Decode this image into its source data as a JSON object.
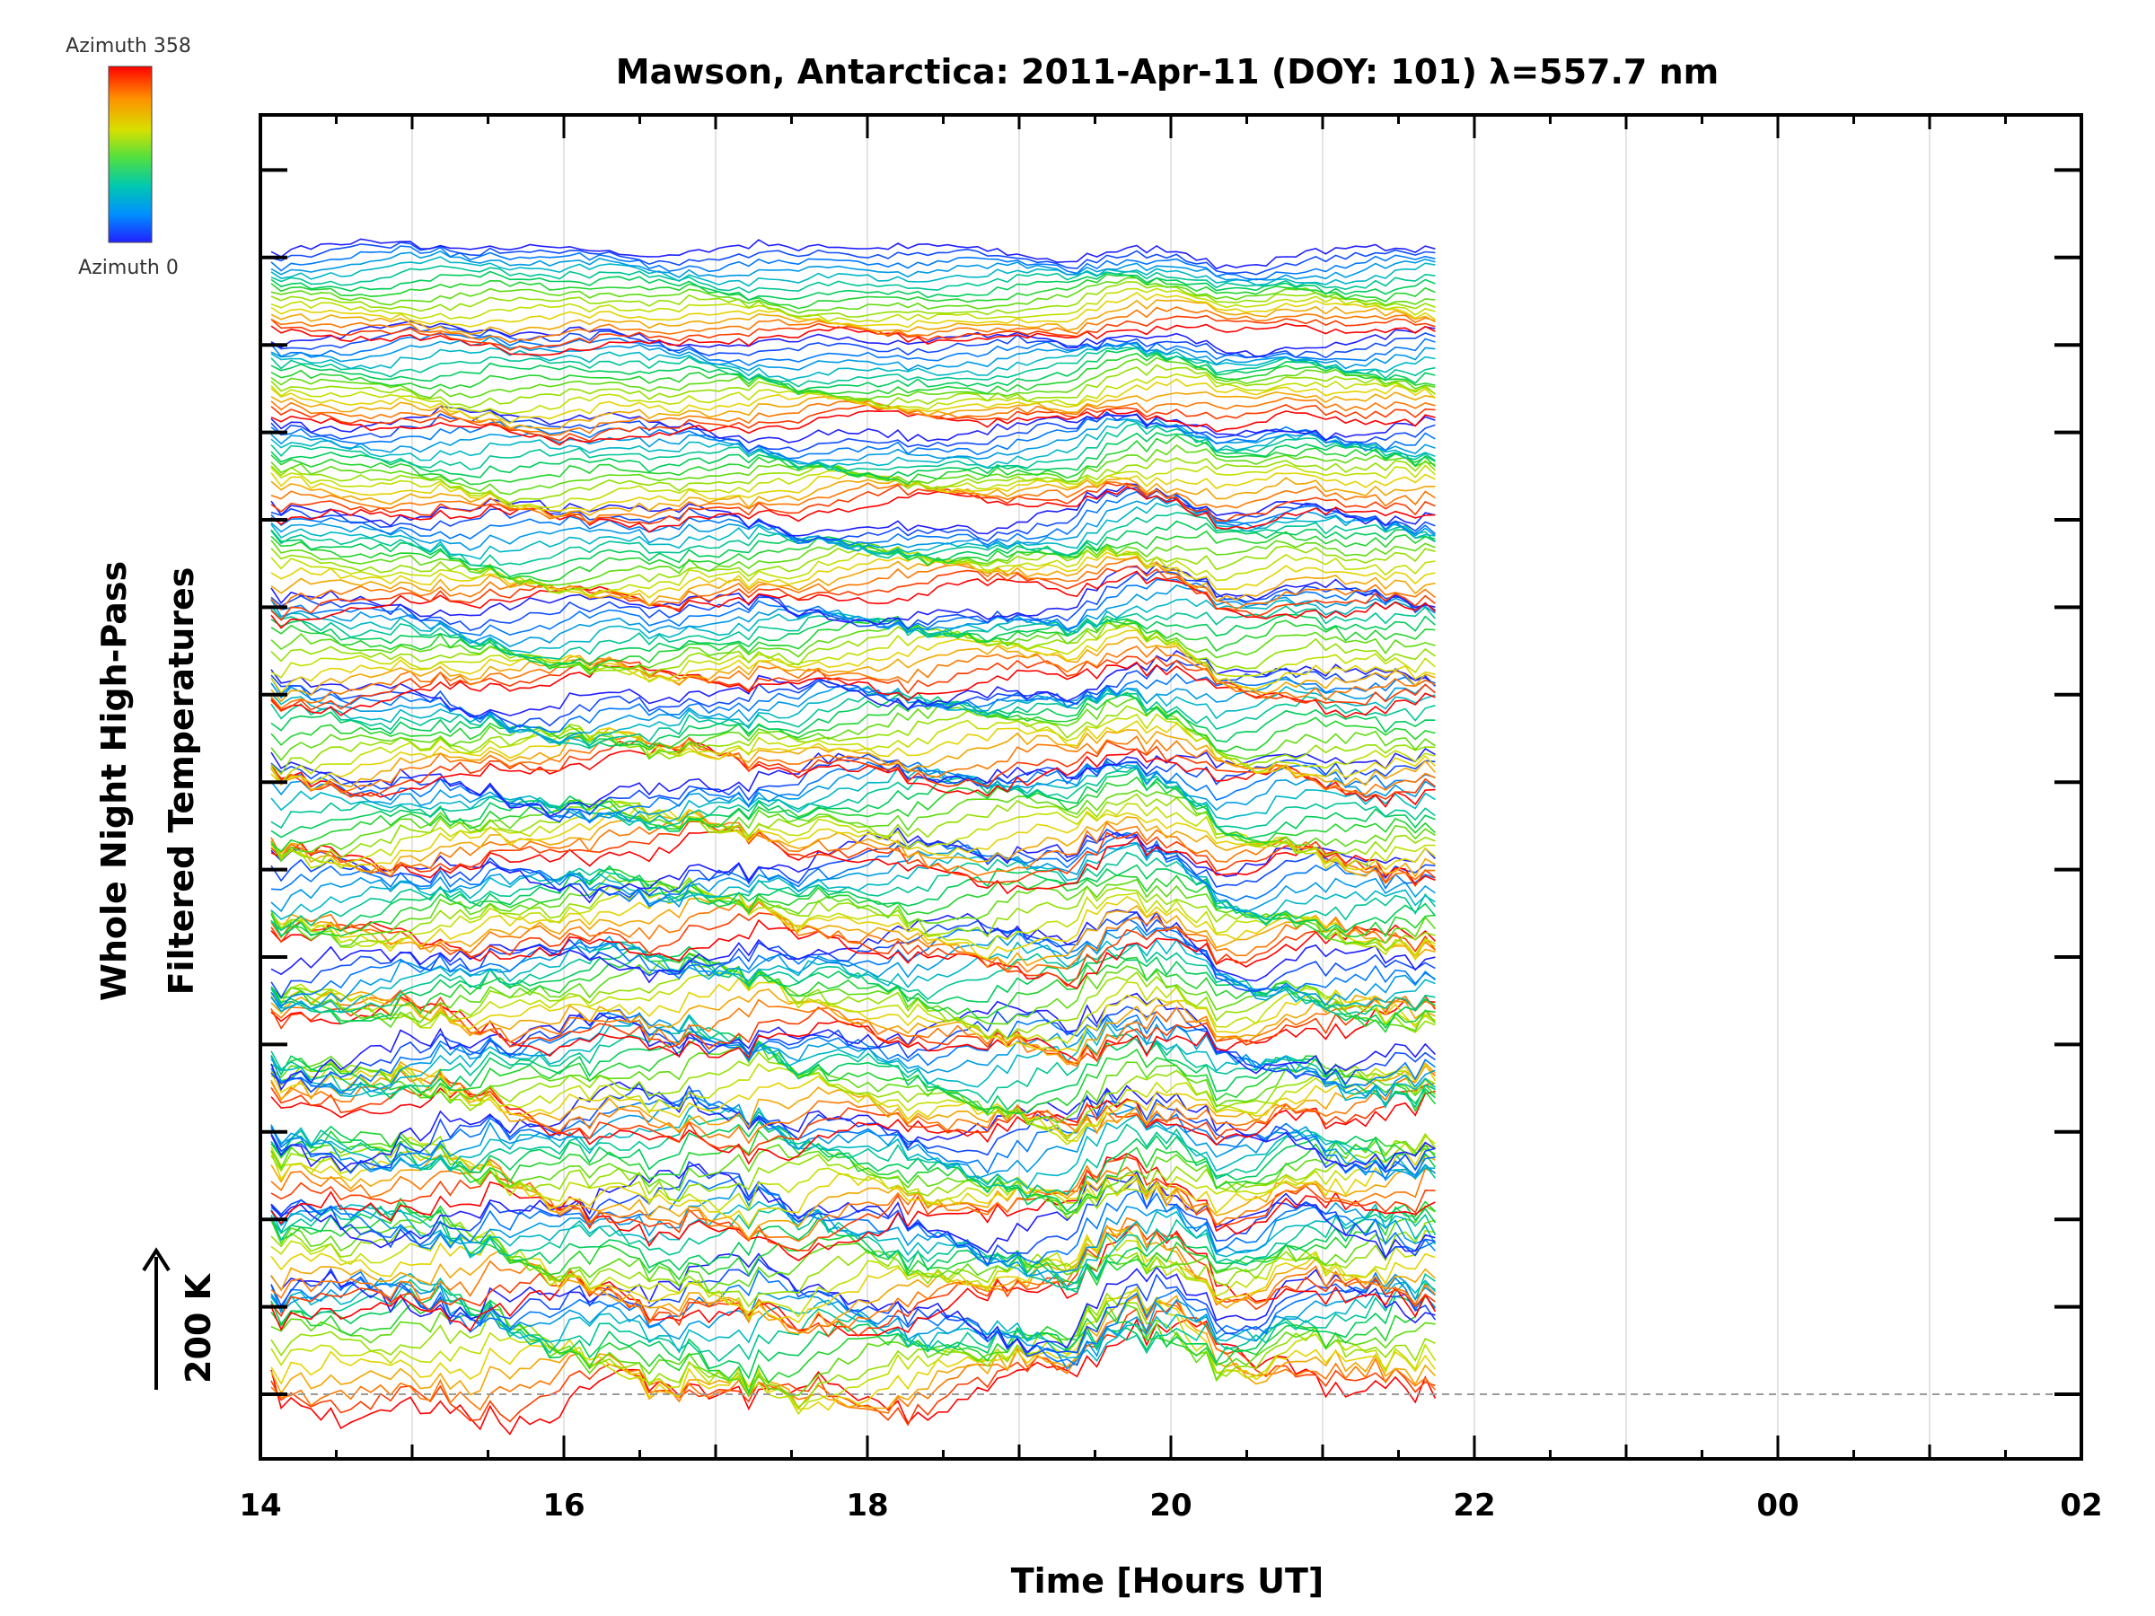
{
  "chart_data": {
    "type": "line",
    "title": "Mawson, Antarctica: 2011-Apr-11 (DOY: 101) λ=557.7 nm",
    "xlabel": "Time [Hours UT]",
    "ylabel_line1": "Whole Night High-Pass",
    "ylabel_line2": "Filtered Temperatures",
    "scale_label": "200 K",
    "x_ticks": [
      "14",
      "16",
      "18",
      "20",
      "22",
      "00",
      "02"
    ],
    "colorbar": {
      "top_label": "Azimuth 358",
      "bottom_label": "Azimuth 0",
      "colors": [
        "#ff0000",
        "#ff8000",
        "#e0e000",
        "#80e000",
        "#00d040",
        "#00c0c0",
        "#0080ff",
        "#2020ff"
      ]
    },
    "trace_groups": 13,
    "traces_per_group": 16,
    "grid": true
  }
}
